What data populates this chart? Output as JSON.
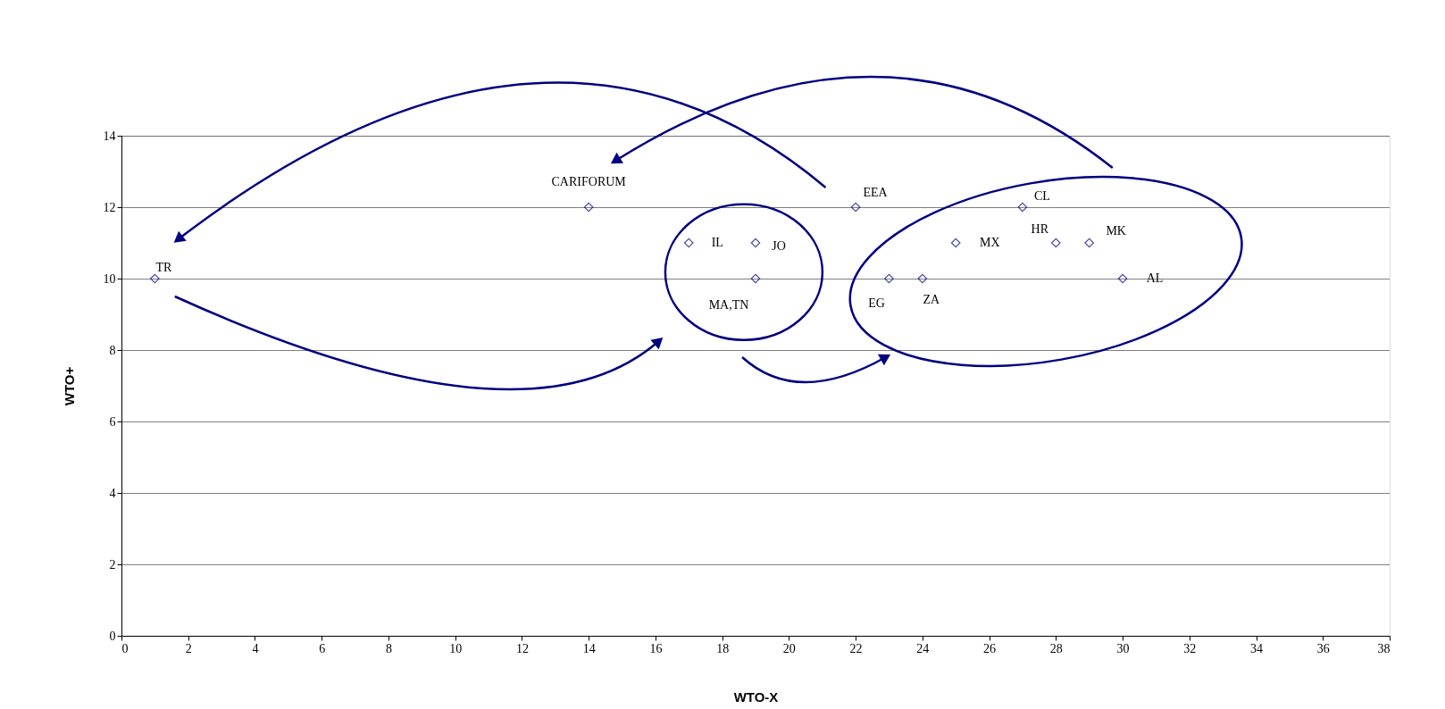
{
  "chart_data": {
    "type": "scatter",
    "xlabel": "WTO-X",
    "ylabel": "WTO+",
    "x": [
      1,
      14,
      17,
      19,
      19,
      22,
      23,
      24,
      25,
      27,
      28,
      29,
      30
    ],
    "series": [
      {
        "color": "#000080",
        "values": [
          10,
          12,
          11,
          11,
          10,
          12,
          10,
          10,
          11,
          12,
          11,
          11,
          10
        ]
      }
    ],
    "annotations": [
      {
        "text": "TR",
        "x": 1,
        "y": 10
      },
      {
        "text": "CARIFORUM",
        "x": 14,
        "y": 12
      },
      {
        "text": "IL",
        "x": 17,
        "y": 11
      },
      {
        "text": "JO",
        "x": 19,
        "y": 11
      },
      {
        "text": "MA,TN",
        "x": 19,
        "y": 10
      },
      {
        "text": "EEA",
        "x": 22,
        "y": 12
      },
      {
        "text": "EG",
        "x": 23,
        "y": 10
      },
      {
        "text": "ZA",
        "x": 24,
        "y": 10
      },
      {
        "text": "MX",
        "x": 25,
        "y": 11
      },
      {
        "text": "CL",
        "x": 27,
        "y": 12
      },
      {
        "text": "HR",
        "x": 28,
        "y": 11
      },
      {
        "text": "MK",
        "x": 29,
        "y": 11
      },
      {
        "text": "AL",
        "x": 30,
        "y": 10
      }
    ],
    "xlim": [
      0,
      38
    ],
    "xticks": [
      0,
      2,
      4,
      6,
      8,
      10,
      12,
      14,
      16,
      18,
      20,
      22,
      24,
      26,
      28,
      30,
      32,
      34,
      36,
      38
    ],
    "ylim": [
      0,
      14
    ],
    "yticks": [
      0,
      2,
      4,
      6,
      8,
      10,
      12,
      14
    ],
    "grid": "y",
    "marker": "diamond",
    "legend": false
  }
}
